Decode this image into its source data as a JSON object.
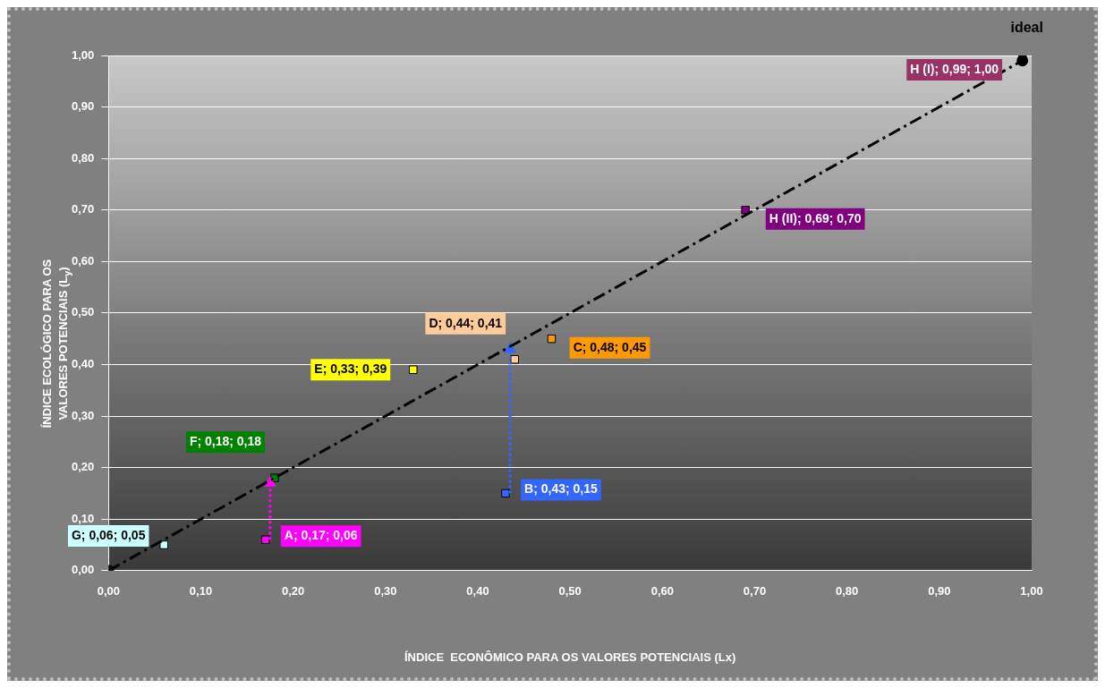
{
  "chart_data": {
    "type": "scatter",
    "xlabel": "ÍNDICE  ECONÔMICO PARA OS VALORES POTENCIAIS (Lx)",
    "ylabel": "ÍNDICE ECOLÓGICO PARA OS VALORES POTENCIAIS (L$_{y}$)",
    "xlim": [
      0,
      1
    ],
    "ylim": [
      0,
      1
    ],
    "xticks": [
      {
        "value": 0,
        "label": "0,00"
      },
      {
        "value": 0.1,
        "label": "0,10"
      },
      {
        "value": 0.2,
        "label": "0,20"
      },
      {
        "value": 0.3,
        "label": "0,30"
      },
      {
        "value": 0.4,
        "label": "0,40"
      },
      {
        "value": 0.5,
        "label": "0,50"
      },
      {
        "value": 0.6,
        "label": "0,60"
      },
      {
        "value": 0.7,
        "label": "0,70"
      },
      {
        "value": 0.8,
        "label": "0,80"
      },
      {
        "value": 0.9,
        "label": "0,90"
      },
      {
        "value": 1,
        "label": "1,00"
      }
    ],
    "yticks": [
      {
        "value": 0,
        "label": "0,00"
      },
      {
        "value": 0.1,
        "label": "0,10"
      },
      {
        "value": 0.2,
        "label": "0,20"
      },
      {
        "value": 0.3,
        "label": "0,30"
      },
      {
        "value": 0.4,
        "label": "0,40"
      },
      {
        "value": 0.5,
        "label": "0,50"
      },
      {
        "value": 0.6,
        "label": "0,60"
      },
      {
        "value": 0.7,
        "label": "0,70"
      },
      {
        "value": 0.8,
        "label": "0,80"
      },
      {
        "value": 0.9,
        "label": "0,90"
      },
      {
        "value": 1,
        "label": "1,00"
      }
    ],
    "grid": "y",
    "legend": false,
    "annotations": [
      {
        "text": "ideal",
        "x": 0.99,
        "y": 1.0
      }
    ],
    "series": [
      {
        "type": "line",
        "color": "#000000",
        "x": [
          0,
          0.99
        ],
        "values": [
          0,
          0.99
        ],
        "line_style": "dashed",
        "marker": "circle"
      },
      {
        "type": "line",
        "color": "#ff00ff",
        "x": [
          0.175,
          0.175
        ],
        "values": [
          0.06,
          0.17
        ],
        "line_style": "dotted",
        "marker": "triangle"
      },
      {
        "type": "line",
        "color": "#3366ff",
        "x": [
          0.435,
          0.435
        ],
        "values": [
          0.15,
          0.43
        ],
        "line_style": "dotted",
        "marker": "triangle"
      },
      {
        "marker": "square",
        "x": [
          0.06,
          0.17,
          0.18,
          0.33,
          0.43,
          0.44,
          0.48,
          0.69,
          0.99
        ],
        "values": [
          0.05,
          0.06,
          0.18,
          0.39,
          0.15,
          0.41,
          0.45,
          0.7,
          1.0
        ],
        "colors": [
          "#ccffff",
          "#ff00ff",
          "#008000",
          "#ffff00",
          "#3366ff",
          "#ffcc99",
          "#ff9900",
          "#800080",
          "#993366"
        ],
        "value_labels": [
          "G; 0,06; 0,05",
          "A; 0,17; 0,06",
          "F; 0,18; 0,18",
          "E; 0,33; 0,39",
          "B; 0,43; 0,15",
          "D; 0,44; 0,41",
          "C; 0,48; 0,45",
          "H (II); 0,69; 0,70",
          "H (I); 0,99; 1,00"
        ]
      }
    ]
  }
}
